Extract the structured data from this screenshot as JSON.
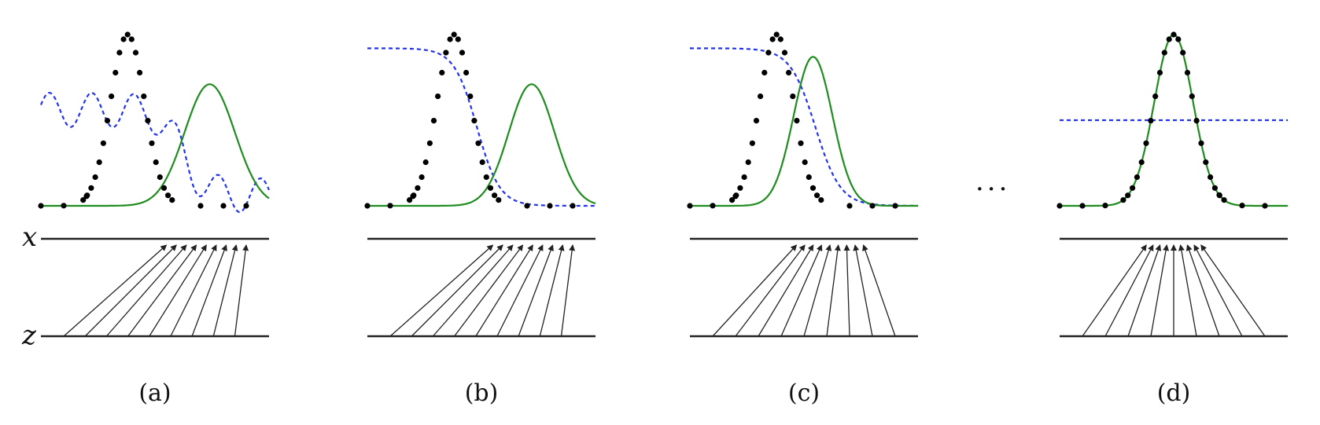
{
  "figure": {
    "axis_labels": {
      "x": "x",
      "z": "z"
    },
    "ellipsis": "···",
    "colors": {
      "data": "#000000",
      "generator": "#1e8c1e",
      "discriminator": "#2233ee",
      "axis": "#222222"
    },
    "panels": [
      {
        "caption": "(a)",
        "data_distribution": {
          "mean": 0.38,
          "sd": 0.075
        },
        "generator_distribution": {
          "mean": 0.74,
          "sd": 0.11,
          "height": 0.71
        },
        "discriminator": {
          "kind": "wavy",
          "level": 0.56
        },
        "mapping_skew": 1.0
      },
      {
        "caption": "(b)",
        "data_distribution": {
          "mean": 0.38,
          "sd": 0.075
        },
        "generator_distribution": {
          "mean": 0.72,
          "sd": 0.1,
          "height": 0.71
        },
        "discriminator": {
          "kind": "sigmoid",
          "high": 0.92,
          "center": 0.48,
          "width": 0.05
        },
        "mapping_skew": 1.0
      },
      {
        "caption": "(c)",
        "data_distribution": {
          "mean": 0.38,
          "sd": 0.075
        },
        "generator_distribution": {
          "mean": 0.54,
          "sd": 0.085,
          "height": 0.87
        },
        "discriminator": {
          "kind": "sigmoid",
          "high": 0.92,
          "center": 0.55,
          "width": 0.055
        },
        "mapping_skew": 0.4
      },
      {
        "caption": "(d)",
        "data_distribution": {
          "mean": 0.5,
          "sd": 0.085
        },
        "generator_distribution": {
          "mean": 0.5,
          "sd": 0.085,
          "height": 1.0
        },
        "discriminator": {
          "kind": "constant",
          "level": 0.5
        },
        "mapping_skew": 0.0
      }
    ]
  }
}
